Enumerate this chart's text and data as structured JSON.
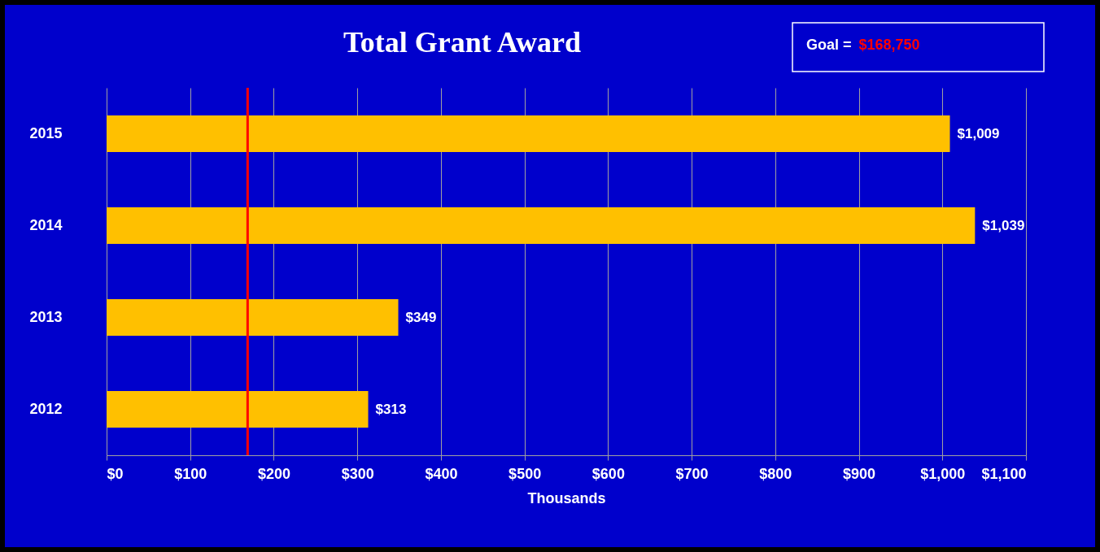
{
  "chart_data": {
    "type": "bar",
    "orientation": "horizontal",
    "title": "Total Grant Award",
    "xlabel": "Thousands",
    "categories": [
      "2015",
      "2014",
      "2013",
      "2012"
    ],
    "values": [
      1009,
      1039,
      349,
      313
    ],
    "color": "#ffc000",
    "value_labels": [
      "$1,009",
      "$1,039",
      "$349",
      "$313"
    ],
    "xlim": [
      0,
      1100
    ],
    "xticks": [
      {
        "value": 0,
        "label": "$0"
      },
      {
        "value": 100,
        "label": "$100"
      },
      {
        "value": 200,
        "label": "$200"
      },
      {
        "value": 300,
        "label": "$300"
      },
      {
        "value": 400,
        "label": "$400"
      },
      {
        "value": 500,
        "label": "$500"
      },
      {
        "value": 600,
        "label": "$600"
      },
      {
        "value": 700,
        "label": "$700"
      },
      {
        "value": 800,
        "label": "$800"
      },
      {
        "value": 900,
        "label": "$900"
      },
      {
        "value": 1000,
        "label": "$1,000"
      },
      {
        "value": 1100,
        "label": "$1,100"
      }
    ],
    "grid": "x",
    "ref_lines": [
      {
        "axis": "x",
        "value": 168.75,
        "color": "#ff0000"
      }
    ],
    "annotations": [
      "Goal = $168,750"
    ]
  }
}
